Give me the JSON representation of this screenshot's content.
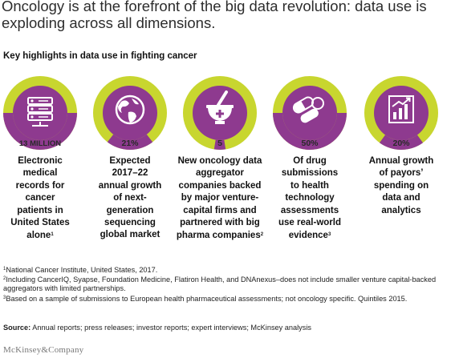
{
  "title": "Oncology is at the forefront of the big data revolution: data use is exploding across all dimensions.",
  "subtitle": "Key highlights in data use in fighting cancer",
  "colors": {
    "green": "#c8d62f",
    "purple": "#8e3a8f",
    "white": "#ffffff"
  },
  "highlights": [
    {
      "value": "13 MILLION",
      "icon": "server-icon",
      "fill_fraction": 0.5,
      "lines": [
        "Electronic",
        "medical",
        "records for",
        "cancer",
        "patients in",
        "United States",
        "alone"
      ],
      "sup": "1"
    },
    {
      "value": "21%",
      "icon": "globe-icon",
      "fill_fraction": 0.21,
      "lines": [
        "Expected",
        "2017–22",
        "annual growth",
        "of next-",
        "generation",
        "sequencing",
        "global market"
      ],
      "sup": ""
    },
    {
      "value": "5",
      "icon": "mortar-pestle-icon",
      "fill_fraction": 0.05,
      "lines": [
        "New oncology data",
        "aggregator",
        "companies backed",
        "by major venture-",
        "capital firms and",
        "partnered with big",
        "pharma companies"
      ],
      "sup": "2"
    },
    {
      "value": "50%",
      "icon": "pills-icon",
      "fill_fraction": 0.5,
      "lines": [
        "Of drug",
        "submissions",
        "to health",
        "technology",
        "assessments",
        "use real-world",
        "evidence"
      ],
      "sup": "3"
    },
    {
      "value": "20%",
      "icon": "bar-chart-icon",
      "fill_fraction": 0.2,
      "lines": [
        "Annual growth",
        "of payors’",
        "spending on",
        "data and",
        "analytics"
      ],
      "sup": ""
    }
  ],
  "footnotes": [
    {
      "num": "1",
      "text": "National Cancer Institute, United States, 2017."
    },
    {
      "num": "2",
      "text": "Including CancerIQ, Syapse, Foundation Medicine, Flatiron Health, and DNAnexus–does not include smaller venture capital-backed aggregators with limited partnerships."
    },
    {
      "num": "3",
      "text": "Based on a sample of submissions to European health pharmaceutical assessments; not oncology specific. Quintiles 2015."
    }
  ],
  "source_label": "Source:",
  "source_text": "Annual reports; press releases; investor reports; expert interviews; McKinsey analysis",
  "brand": "McKinsey&Company"
}
